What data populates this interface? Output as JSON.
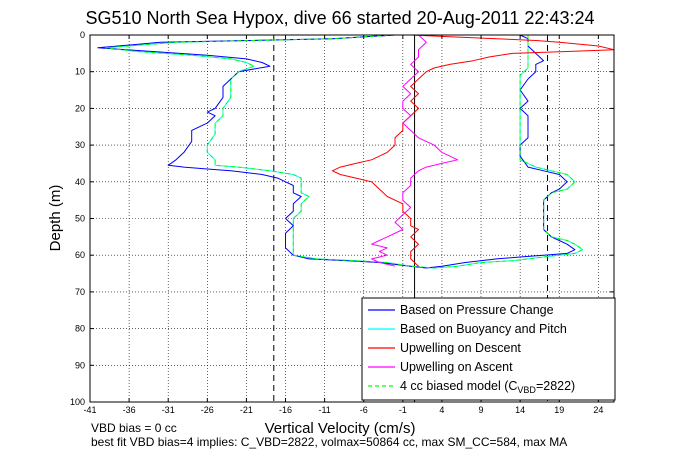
{
  "chart_data": {
    "type": "line",
    "title": "SG510 North Sea Hypox, dive 66 started 20-Aug-2011 22:43:24",
    "xlabel": "Vertical Velocity (cm/s)",
    "ylabel": "Depth (m)",
    "xlim": [
      -41,
      26
    ],
    "ylim": [
      0,
      100
    ],
    "y_reversed": true,
    "grid": true,
    "legend_position": "bottom-right",
    "xticks": [
      -41,
      -36,
      -31,
      -26,
      -21,
      -16,
      -11,
      -6,
      -1,
      4,
      9,
      14,
      19,
      24
    ],
    "yticks": [
      0,
      10,
      20,
      30,
      40,
      50,
      60,
      70,
      80,
      90,
      100
    ],
    "vlines": [
      {
        "x": -17.5,
        "style": "dashed"
      },
      {
        "x": 0.5,
        "style": "solid"
      },
      {
        "x": 17.5,
        "style": "dashed"
      }
    ],
    "series": [
      {
        "name": "Based on Pressure Change",
        "color": "#0000ff",
        "points": [
          [
            -2,
            0
          ],
          [
            -10,
            1
          ],
          [
            -32,
            2
          ],
          [
            -40,
            3.5
          ],
          [
            -33,
            4.5
          ],
          [
            -26,
            5.5
          ],
          [
            -21,
            6.5
          ],
          [
            -19,
            7.5
          ],
          [
            -18,
            8.5
          ],
          [
            -22,
            10
          ],
          [
            -23,
            12
          ],
          [
            -24,
            14
          ],
          [
            -24,
            17
          ],
          [
            -25,
            20
          ],
          [
            -26,
            21
          ],
          [
            -25,
            22
          ],
          [
            -26,
            24
          ],
          [
            -28,
            26
          ],
          [
            -28,
            29
          ],
          [
            -29,
            32
          ],
          [
            -30,
            34
          ],
          [
            -31,
            35.5
          ],
          [
            -29,
            36
          ],
          [
            -26,
            36.5
          ],
          [
            -23,
            37
          ],
          [
            -19,
            38
          ],
          [
            -17,
            39
          ],
          [
            -16,
            40
          ],
          [
            -15,
            41
          ],
          [
            -15,
            43
          ],
          [
            -14,
            44
          ],
          [
            -15,
            46
          ],
          [
            -15,
            48
          ],
          [
            -16,
            50
          ],
          [
            -15,
            52
          ],
          [
            -16,
            54
          ],
          [
            -16,
            56
          ],
          [
            -16,
            58
          ],
          [
            -15,
            60
          ],
          [
            -13,
            61
          ],
          [
            -8,
            61.5
          ],
          [
            -4,
            62
          ],
          [
            0,
            63
          ],
          [
            2,
            63.5
          ],
          [
            4,
            63
          ],
          [
            7,
            62
          ],
          [
            11,
            61
          ],
          [
            14,
            60.5
          ],
          [
            17,
            60
          ],
          [
            20,
            59.5
          ],
          [
            21,
            58.5
          ],
          [
            20,
            57
          ],
          [
            19,
            56
          ],
          [
            18,
            55
          ],
          [
            17,
            53
          ],
          [
            17,
            50
          ],
          [
            17,
            48
          ],
          [
            17,
            45
          ],
          [
            18,
            43
          ],
          [
            19,
            42
          ],
          [
            20,
            40
          ],
          [
            19,
            38
          ],
          [
            17,
            37
          ],
          [
            15,
            36
          ],
          [
            14,
            33
          ],
          [
            14,
            30
          ],
          [
            15,
            28
          ],
          [
            15,
            25
          ],
          [
            15,
            22
          ],
          [
            14,
            20
          ],
          [
            15,
            18
          ],
          [
            14,
            15
          ],
          [
            15,
            12
          ],
          [
            16,
            10
          ],
          [
            16,
            8
          ],
          [
            17,
            7
          ],
          [
            16,
            5
          ],
          [
            15,
            3
          ],
          [
            15,
            1
          ],
          [
            14,
            0
          ]
        ]
      },
      {
        "name": "Based on Buoyancy and Pitch",
        "color": "#00ffff",
        "points": [
          [
            -2,
            0
          ],
          [
            -10,
            1
          ],
          [
            -30,
            2
          ],
          [
            -39,
            3.5
          ],
          [
            -35,
            4.5
          ],
          [
            -28,
            5.5
          ],
          [
            -23,
            6.5
          ],
          [
            -21,
            7.5
          ],
          [
            -20,
            8.5
          ],
          [
            -22,
            10
          ],
          [
            -23,
            12
          ],
          [
            -23,
            14
          ],
          [
            -23,
            17
          ],
          [
            -24,
            20
          ],
          [
            -24,
            22
          ],
          [
            -25,
            24
          ],
          [
            -25,
            27
          ],
          [
            -26,
            30
          ],
          [
            -26,
            32
          ],
          [
            -25,
            34
          ],
          [
            -25,
            35.5
          ],
          [
            -22,
            36
          ],
          [
            -18,
            37
          ],
          [
            -15,
            38
          ],
          [
            -14,
            39
          ],
          [
            -14,
            41
          ],
          [
            -14,
            43
          ],
          [
            -13,
            44
          ],
          [
            -14,
            46
          ],
          [
            -14,
            48
          ],
          [
            -15,
            50
          ],
          [
            -15,
            52
          ],
          [
            -15,
            54
          ],
          [
            -15,
            56
          ],
          [
            -15,
            58
          ],
          [
            -15,
            60
          ],
          [
            -12,
            61
          ],
          [
            -7,
            61.5
          ],
          [
            -3,
            62
          ],
          [
            0,
            63
          ],
          [
            3,
            63.5
          ],
          [
            6,
            63
          ],
          [
            9,
            62
          ],
          [
            13,
            61.5
          ],
          [
            17,
            60.5
          ],
          [
            21,
            59.5
          ],
          [
            22,
            58.5
          ],
          [
            21,
            57
          ],
          [
            20,
            56
          ],
          [
            18,
            55
          ],
          [
            17,
            53
          ],
          [
            17,
            50
          ],
          [
            17,
            48
          ],
          [
            17,
            45
          ],
          [
            18,
            43
          ],
          [
            20,
            42
          ],
          [
            21,
            40
          ],
          [
            20,
            38
          ],
          [
            18,
            37
          ],
          [
            16,
            36
          ],
          [
            14,
            34
          ],
          [
            14,
            31
          ],
          [
            14,
            28
          ],
          [
            14,
            25
          ],
          [
            14,
            22
          ],
          [
            14,
            20
          ],
          [
            14,
            17
          ],
          [
            14,
            14
          ],
          [
            14,
            11
          ],
          [
            15,
            9
          ],
          [
            15,
            7
          ],
          [
            15,
            5
          ],
          [
            15,
            3
          ],
          [
            15,
            1
          ],
          [
            15,
            0
          ]
        ]
      },
      {
        "name": "Upwelling on Descent",
        "color": "#ff0000",
        "points": [
          [
            0,
            0
          ],
          [
            5,
            0.5
          ],
          [
            11,
            1
          ],
          [
            16,
            1.5
          ],
          [
            19,
            2
          ],
          [
            24,
            3
          ],
          [
            26,
            4
          ],
          [
            20,
            4.5
          ],
          [
            13,
            5
          ],
          [
            10,
            6
          ],
          [
            8,
            7
          ],
          [
            5,
            8
          ],
          [
            3,
            9
          ],
          [
            2,
            10
          ],
          [
            1,
            12
          ],
          [
            0,
            14
          ],
          [
            1,
            16
          ],
          [
            0,
            18
          ],
          [
            1,
            20
          ],
          [
            0,
            22
          ],
          [
            -1,
            24
          ],
          [
            -1,
            26
          ],
          [
            -2,
            28
          ],
          [
            -2,
            30
          ],
          [
            -3,
            32
          ],
          [
            -5,
            34
          ],
          [
            -7,
            35
          ],
          [
            -9,
            36
          ],
          [
            -10,
            37
          ],
          [
            -9,
            38
          ],
          [
            -7,
            39
          ],
          [
            -5,
            40
          ],
          [
            -4,
            42
          ],
          [
            -3,
            44
          ],
          [
            -1,
            46
          ],
          [
            -1,
            48
          ],
          [
            0,
            50
          ],
          [
            0,
            52
          ],
          [
            1,
            53
          ],
          [
            0,
            55
          ],
          [
            1,
            57
          ],
          [
            0,
            59
          ],
          [
            0,
            61
          ],
          [
            1,
            63
          ]
        ]
      },
      {
        "name": "Upwelling on Ascent",
        "color": "#ff00ff",
        "points": [
          [
            1,
            0
          ],
          [
            2,
            2
          ],
          [
            1,
            4
          ],
          [
            1,
            6
          ],
          [
            0,
            8
          ],
          [
            1,
            10
          ],
          [
            0,
            12
          ],
          [
            -1,
            14
          ],
          [
            0,
            16
          ],
          [
            -1,
            18
          ],
          [
            -1,
            20
          ],
          [
            0,
            22
          ],
          [
            -1,
            24
          ],
          [
            0,
            26
          ],
          [
            1,
            28
          ],
          [
            3,
            30
          ],
          [
            4,
            32
          ],
          [
            5,
            33
          ],
          [
            6,
            34
          ],
          [
            4,
            35
          ],
          [
            2,
            36
          ],
          [
            1,
            37
          ],
          [
            0,
            39
          ],
          [
            0,
            41
          ],
          [
            -1,
            43
          ],
          [
            -1,
            45
          ],
          [
            0,
            47
          ],
          [
            -1,
            49
          ],
          [
            -2,
            51
          ],
          [
            -1,
            53
          ],
          [
            -3,
            55
          ],
          [
            -4,
            56
          ],
          [
            -5,
            57
          ],
          [
            -3,
            58
          ],
          [
            -4,
            59
          ],
          [
            -3,
            60
          ],
          [
            -5,
            61
          ],
          [
            -4,
            62
          ],
          [
            -2,
            63
          ]
        ]
      },
      {
        "name": "4 cc biased model",
        "name_subscript": "VBD",
        "name_suffix_prefix": " (C",
        "name_suffix": "=2822)",
        "color": "#00ff00",
        "dash": "4,3",
        "points": [
          [
            -2,
            0
          ],
          [
            -10,
            1
          ],
          [
            -30,
            2
          ],
          [
            -39,
            3.5
          ],
          [
            -35,
            4.5
          ],
          [
            -28,
            5.5
          ],
          [
            -23,
            6.5
          ],
          [
            -21,
            7.5
          ],
          [
            -20,
            8.5
          ],
          [
            -22,
            10
          ],
          [
            -23,
            12
          ],
          [
            -23,
            14
          ],
          [
            -23,
            17
          ],
          [
            -24,
            20
          ],
          [
            -24,
            22
          ],
          [
            -25,
            24
          ],
          [
            -25,
            27
          ],
          [
            -26,
            30
          ],
          [
            -26,
            32
          ],
          [
            -25,
            34
          ],
          [
            -25,
            35.5
          ],
          [
            -22,
            36
          ],
          [
            -18,
            37
          ],
          [
            -15,
            38
          ],
          [
            -14,
            39
          ],
          [
            -14,
            41
          ],
          [
            -14,
            43
          ],
          [
            -13,
            44
          ],
          [
            -14,
            46
          ],
          [
            -14,
            48
          ],
          [
            -15,
            50
          ],
          [
            -15,
            52
          ],
          [
            -15,
            54
          ],
          [
            -15,
            56
          ],
          [
            -15,
            58
          ],
          [
            -15,
            60
          ],
          [
            -12,
            61
          ],
          [
            -7,
            61.5
          ],
          [
            -3,
            62
          ],
          [
            0,
            63
          ],
          [
            3,
            63.5
          ],
          [
            6,
            63
          ],
          [
            9,
            62
          ],
          [
            13,
            61.5
          ],
          [
            17,
            60.5
          ],
          [
            21,
            59.5
          ],
          [
            22,
            58.5
          ],
          [
            21,
            57
          ],
          [
            20,
            56
          ],
          [
            18,
            55
          ],
          [
            17,
            53
          ],
          [
            17,
            50
          ],
          [
            17,
            48
          ],
          [
            17,
            45
          ],
          [
            18,
            43
          ],
          [
            20,
            42
          ],
          [
            21,
            40
          ],
          [
            20,
            38
          ],
          [
            18,
            37
          ],
          [
            16,
            36
          ],
          [
            14,
            34
          ],
          [
            14,
            31
          ],
          [
            14,
            28
          ],
          [
            14,
            25
          ],
          [
            14,
            22
          ],
          [
            14,
            20
          ],
          [
            14,
            17
          ],
          [
            14,
            14
          ],
          [
            14,
            11
          ],
          [
            15,
            9
          ],
          [
            15,
            7
          ],
          [
            15,
            5
          ],
          [
            15,
            3
          ],
          [
            15,
            1
          ],
          [
            15,
            0
          ]
        ]
      }
    ],
    "notes": [
      "VBD bias = 0 cc",
      "best fit VBD bias=4 implies: C_VBD=2822, volmax=50864 cc, max SM_CC=584, max MA"
    ]
  }
}
